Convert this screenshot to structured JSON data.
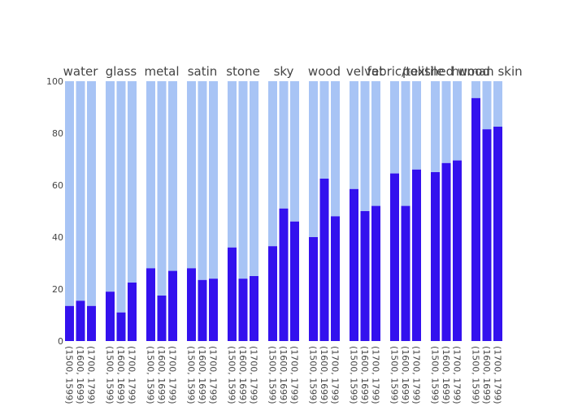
{
  "chart_data": {
    "type": "bar",
    "barmode": "stack",
    "ylim": [
      0,
      100
    ],
    "yticks": [
      0,
      20,
      40,
      60,
      80,
      100
    ],
    "grid": false,
    "legend": "none",
    "colors": {
      "lower": "#3311ee",
      "upper": "#a8c4f5"
    },
    "tick_labels": [
      "(1500, 1599)",
      "(1600, 1699)",
      "(1700, 1799)"
    ],
    "facets": [
      {
        "title": "water",
        "values": [
          13.5,
          15.5,
          13.5
        ]
      },
      {
        "title": "glass",
        "values": [
          19,
          11,
          22.5
        ]
      },
      {
        "title": "metal",
        "values": [
          28,
          17.5,
          27
        ]
      },
      {
        "title": "satin",
        "values": [
          28,
          23.5,
          24
        ]
      },
      {
        "title": "stone",
        "values": [
          36,
          24,
          25
        ]
      },
      {
        "title": "sky",
        "values": [
          36.5,
          51,
          46
        ]
      },
      {
        "title": "wood",
        "values": [
          40,
          62.5,
          48
        ]
      },
      {
        "title": "velvet",
        "values": [
          58.5,
          50,
          52
        ]
      },
      {
        "title": "fabric/textile",
        "values": [
          64.5,
          52,
          66
        ]
      },
      {
        "title": "polished wood",
        "values": [
          65,
          68.5,
          69.5
        ]
      },
      {
        "title": "human skin",
        "values": [
          93.5,
          81.5,
          82.5
        ]
      }
    ]
  }
}
